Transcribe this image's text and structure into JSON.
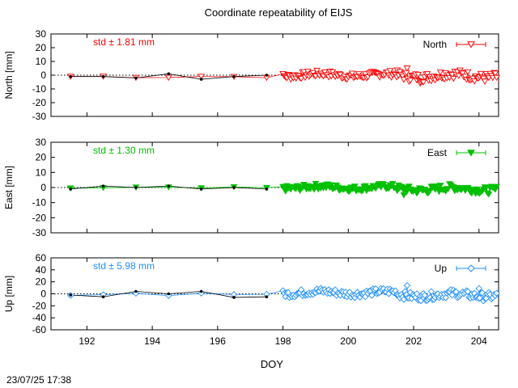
{
  "title": "Coordinate repeatability of EIJS",
  "timestamp": "23/07/25 17:38",
  "chart_data": [
    {
      "type": "scatter",
      "component": "North",
      "ylabel": "North [mm]",
      "ylim": [
        -30,
        30
      ],
      "yticks": [
        30,
        20,
        10,
        0,
        -10,
        -20,
        -30
      ],
      "xlim": [
        190.9,
        204.6
      ],
      "xticks": [
        192,
        194,
        196,
        198,
        200,
        202,
        204
      ],
      "std_label": "std ± 1.81 mm",
      "legend": "North",
      "legend_position": "top-right",
      "color": "#ff0000",
      "marker": "triangle-down-open",
      "daily_solutions": {
        "x": [
          191.5,
          192.5,
          193.5,
          194.5,
          195.5,
          196.5,
          197.5
        ],
        "y": [
          -1,
          -1,
          -2,
          1,
          -3,
          -1,
          0
        ]
      },
      "series_segments": [
        {
          "x_start": 191.5,
          "x_end": 198.0,
          "mean": -1.0,
          "amplitude": 1.2,
          "step": 1.0
        },
        {
          "x_start": 198.0,
          "x_end": 201.5,
          "mean": 0.0,
          "amplitude": 2.5,
          "step": 0.04
        },
        {
          "x_start": 201.5,
          "x_end": 204.55,
          "mean": -0.5,
          "amplitude": 3.5,
          "step": 0.04
        }
      ],
      "outliers": [
        {
          "x": 201.8,
          "y": 5
        },
        {
          "x": 202.2,
          "y": -6
        }
      ]
    },
    {
      "type": "scatter",
      "component": "East",
      "ylabel": "East [mm]",
      "ylim": [
        -30,
        30
      ],
      "yticks": [
        30,
        20,
        10,
        0,
        -10,
        -20,
        -30
      ],
      "xlim": [
        190.9,
        204.6
      ],
      "xticks": [
        192,
        194,
        196,
        198,
        200,
        202,
        204
      ],
      "std_label": "std ± 1.30 mm",
      "legend": "East",
      "legend_position": "top-right",
      "color": "#00c000",
      "marker": "triangle-down-filled",
      "daily_solutions": {
        "x": [
          191.5,
          192.5,
          193.5,
          194.5,
          195.5,
          196.5,
          197.5
        ],
        "y": [
          -1,
          1,
          0,
          1,
          -1,
          0,
          -1
        ]
      },
      "series_segments": [
        {
          "x_start": 191.5,
          "x_end": 198.0,
          "mean": -0.5,
          "amplitude": 1.0,
          "step": 1.0
        },
        {
          "x_start": 198.0,
          "x_end": 201.5,
          "mean": 0.0,
          "amplitude": 2.0,
          "step": 0.04
        },
        {
          "x_start": 201.5,
          "x_end": 204.55,
          "mean": -1.0,
          "amplitude": 2.5,
          "step": 0.04
        }
      ],
      "outliers": [
        {
          "x": 201.7,
          "y": -5
        }
      ]
    },
    {
      "type": "scatter",
      "component": "Up",
      "ylabel": "Up [mm]",
      "ylim": [
        -60,
        60
      ],
      "yticks": [
        60,
        40,
        20,
        0,
        -20,
        -40,
        -60
      ],
      "xlim": [
        190.9,
        204.6
      ],
      "xticks": [
        192,
        194,
        196,
        198,
        200,
        202,
        204
      ],
      "std_label": "std ± 5.98 mm",
      "legend": "Up",
      "legend_position": "top-right",
      "color": "#1e90ff",
      "marker": "diamond-open",
      "daily_solutions": {
        "x": [
          191.5,
          192.5,
          193.5,
          194.5,
          195.5,
          196.5,
          197.5
        ],
        "y": [
          -2,
          -5,
          4,
          0,
          4,
          -6,
          -5
        ]
      },
      "series_segments": [
        {
          "x_start": 191.5,
          "x_end": 198.0,
          "mean": 0.0,
          "amplitude": 3.0,
          "step": 1.0
        },
        {
          "x_start": 198.0,
          "x_end": 201.5,
          "mean": 2.0,
          "amplitude": 6.0,
          "step": 0.04
        },
        {
          "x_start": 201.5,
          "x_end": 204.55,
          "mean": -2.0,
          "amplitude": 7.0,
          "step": 0.04
        }
      ],
      "outliers": [
        {
          "x": 201.8,
          "y": 14
        },
        {
          "x": 204.0,
          "y": 9
        }
      ]
    }
  ],
  "xlabel": "DOY"
}
